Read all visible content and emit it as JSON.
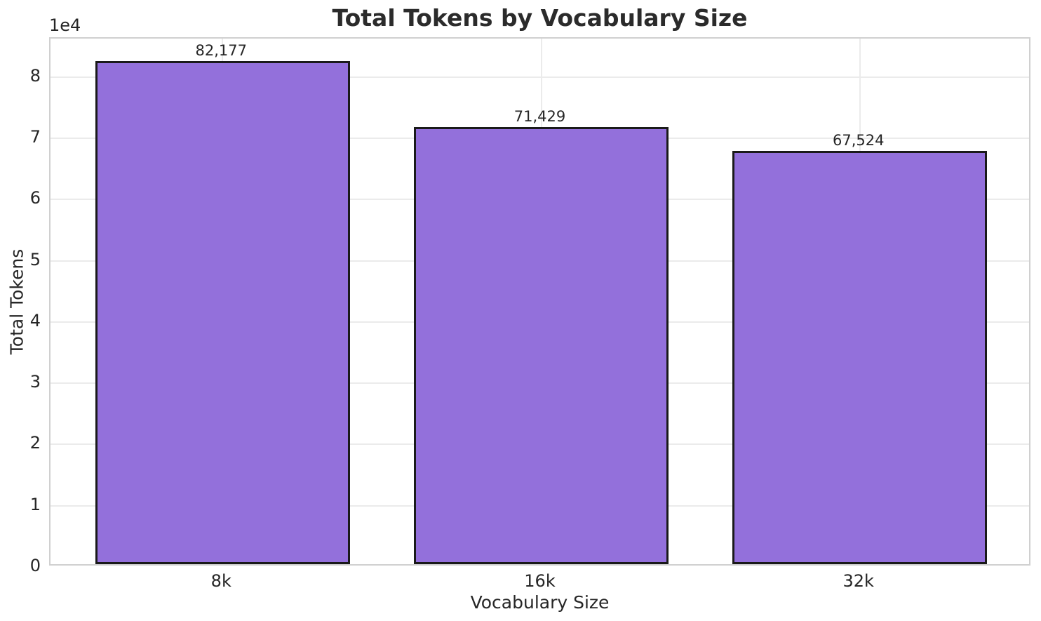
{
  "figure": {
    "background": "#ffffff"
  },
  "chart_data": {
    "type": "bar",
    "title": "Total Tokens by Vocabulary Size",
    "xlabel": "Vocabulary Size",
    "ylabel": "Total Tokens",
    "y_offset_label": "1e4",
    "categories": [
      "8k",
      "16k",
      "32k"
    ],
    "values": [
      82177,
      71429,
      67524
    ],
    "bar_labels": [
      "82,177",
      "71,429",
      "67,524"
    ],
    "ylim": [
      0,
      86286
    ],
    "xlim": [
      -0.54,
      2.54
    ],
    "yticks": [
      0,
      1,
      2,
      3,
      4,
      5,
      6,
      7,
      8
    ],
    "ytick_labels": [
      "0",
      "1",
      "2",
      "3",
      "4",
      "5",
      "6",
      "7",
      "8"
    ],
    "y_multiplier": 10000,
    "bar_width_fraction": 0.8,
    "grid": true,
    "legend_position": "none",
    "colors": {
      "bar_fill": "#9370DB",
      "bar_edge": "#1a1a1a",
      "grid": "#ebebeb",
      "spine": "#d0d0d0",
      "text": "#262626"
    }
  }
}
